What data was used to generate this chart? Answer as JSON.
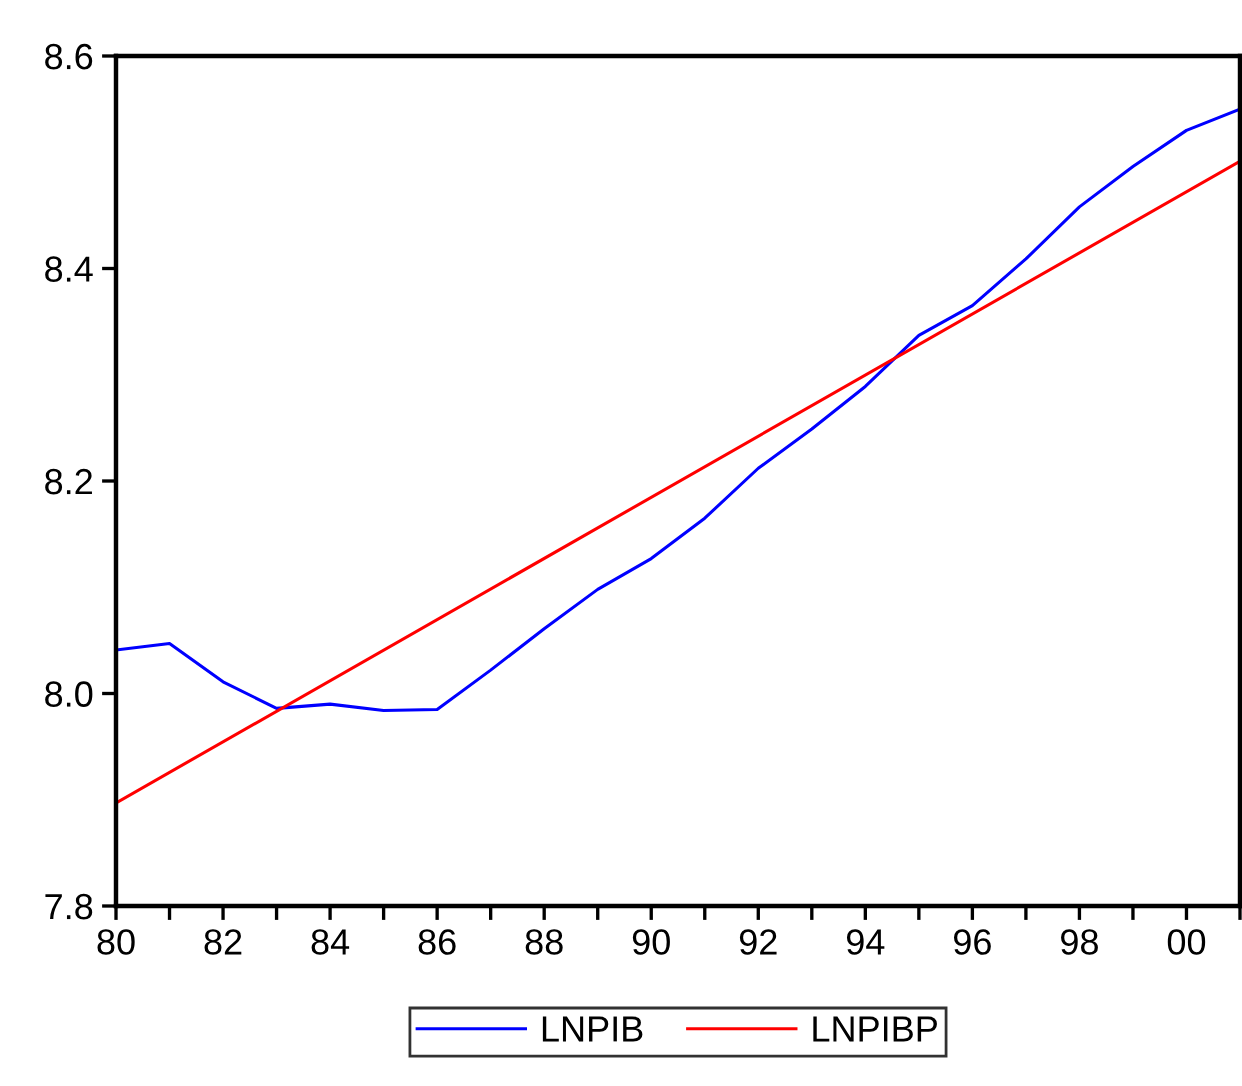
{
  "chart_data": {
    "type": "line",
    "x": [
      1980,
      1981,
      1982,
      1983,
      1984,
      1985,
      1986,
      1987,
      1988,
      1989,
      1990,
      1991,
      1992,
      1993,
      1994,
      1995,
      1996,
      1997,
      1998,
      1999,
      2000,
      2001
    ],
    "series": [
      {
        "name": "LNPIB",
        "color": "#0000ff",
        "values": [
          8.041,
          8.047,
          8.011,
          7.986,
          7.99,
          7.984,
          7.985,
          8.022,
          8.061,
          8.098,
          8.127,
          8.165,
          8.212,
          8.249,
          8.289,
          8.337,
          8.365,
          8.409,
          8.458,
          8.496,
          8.53,
          8.55
        ]
      },
      {
        "name": "LNPIBP",
        "color": "#ff0000",
        "x": [
          1980,
          2001
        ],
        "values": [
          7.897,
          8.501
        ]
      }
    ],
    "xlim": [
      1980,
      2001
    ],
    "xticks": [
      {
        "value": 1980,
        "label": "80"
      },
      {
        "value": 1981,
        "label": null
      },
      {
        "value": 1982,
        "label": "82"
      },
      {
        "value": 1983,
        "label": null
      },
      {
        "value": 1984,
        "label": "84"
      },
      {
        "value": 1985,
        "label": null
      },
      {
        "value": 1986,
        "label": "86"
      },
      {
        "value": 1987,
        "label": null
      },
      {
        "value": 1988,
        "label": "88"
      },
      {
        "value": 1989,
        "label": null
      },
      {
        "value": 1990,
        "label": "90"
      },
      {
        "value": 1991,
        "label": null
      },
      {
        "value": 1992,
        "label": "92"
      },
      {
        "value": 1993,
        "label": null
      },
      {
        "value": 1994,
        "label": "94"
      },
      {
        "value": 1995,
        "label": null
      },
      {
        "value": 1996,
        "label": "96"
      },
      {
        "value": 1997,
        "label": null
      },
      {
        "value": 1998,
        "label": "98"
      },
      {
        "value": 1999,
        "label": null
      },
      {
        "value": 2000,
        "label": "00"
      },
      {
        "value": 2001,
        "label": null
      }
    ],
    "ylim": [
      7.8,
      8.6
    ],
    "yticks": [
      7.8,
      {
        "value": 8.0,
        "label": "8.0"
      },
      8.2,
      8.4,
      8.6
    ],
    "grid": false,
    "legend": "bottom",
    "marker": "none",
    "line_style": "solid"
  }
}
